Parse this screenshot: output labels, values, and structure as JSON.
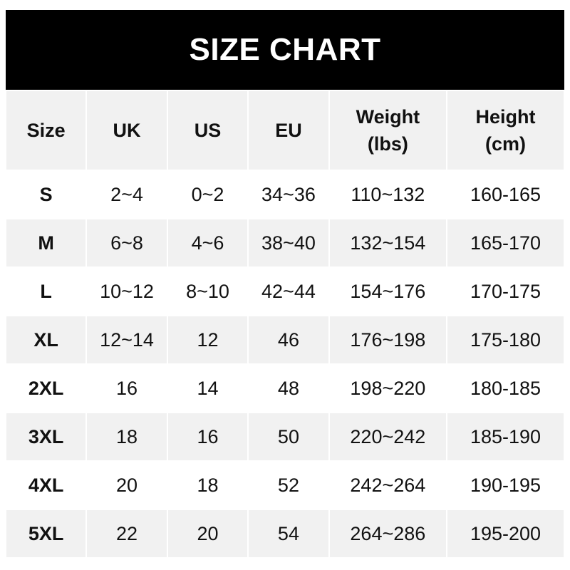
{
  "title": "SIZE CHART",
  "headers": [
    "Size",
    "UK",
    "US",
    "EU",
    "Weight\n(lbs)",
    "Height\n(cm)"
  ],
  "header_lines": [
    [
      "Size"
    ],
    [
      "UK"
    ],
    [
      "US"
    ],
    [
      "EU"
    ],
    [
      "Weight",
      "(lbs)"
    ],
    [
      "Height",
      "(cm)"
    ]
  ],
  "rows": [
    [
      "S",
      "2~4",
      "0~2",
      "34~36",
      "110~132",
      "160-165"
    ],
    [
      "M",
      "6~8",
      "4~6",
      "38~40",
      "132~154",
      "165-170"
    ],
    [
      "L",
      "10~12",
      "8~10",
      "42~44",
      "154~176",
      "170-175"
    ],
    [
      "XL",
      "12~14",
      "12",
      "46",
      "176~198",
      "175-180"
    ],
    [
      "2XL",
      "16",
      "14",
      "48",
      "198~220",
      "180-185"
    ],
    [
      "3XL",
      "18",
      "16",
      "50",
      "220~242",
      "185-190"
    ],
    [
      "4XL",
      "20",
      "18",
      "52",
      "242~264",
      "190-195"
    ],
    [
      "5XL",
      "22",
      "20",
      "54",
      "264~286",
      "195-200"
    ]
  ],
  "colors": {
    "title_bg": "#000000",
    "title_text": "#ffffff",
    "stripe": "#f1f1f1",
    "text": "#111111"
  }
}
